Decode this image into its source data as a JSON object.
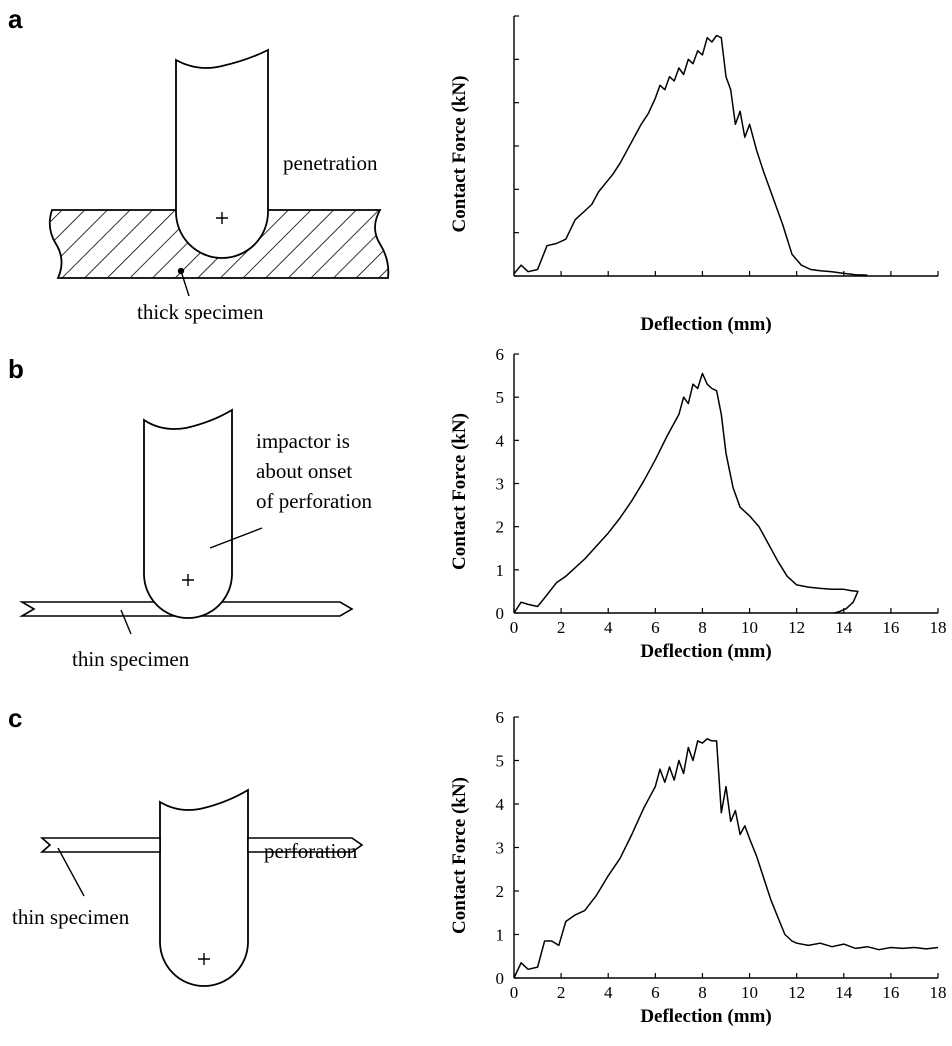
{
  "panels": [
    {
      "letter": "a",
      "annotations": [
        "penetration",
        "thick specimen"
      ]
    },
    {
      "letter": "b",
      "annotations": [
        "impactor is",
        "about onset",
        "of perforation",
        "thin specimen"
      ]
    },
    {
      "letter": "c",
      "annotations": [
        "perforation",
        "thin specimen"
      ]
    }
  ],
  "colors": {
    "line": "#000000",
    "background": "#ffffff"
  },
  "chart_data": [
    {
      "type": "line",
      "xlabel": "Deflection (mm)",
      "ylabel": "Contact Force (kN)",
      "xlim": [
        0,
        18
      ],
      "ylim": [
        0,
        6
      ],
      "show_x_tick_labels": false,
      "show_y_tick_labels": false,
      "x_ticks": [
        0,
        2,
        4,
        6,
        8,
        10,
        12,
        14,
        16,
        18
      ],
      "y_ticks": [
        0,
        1,
        2,
        3,
        4,
        5,
        6
      ],
      "grid": false,
      "series": [
        {
          "x": [
            0.0,
            0.3,
            0.6,
            1.0,
            1.4,
            1.8,
            2.2,
            2.6,
            3.0,
            3.3,
            3.6,
            3.9,
            4.2,
            4.5,
            4.8,
            5.1,
            5.4,
            5.7,
            6.0,
            6.2,
            6.4,
            6.6,
            6.8,
            7.0,
            7.2,
            7.4,
            7.6,
            7.8,
            8.0,
            8.2,
            8.4,
            8.6,
            8.8,
            9.0,
            9.2,
            9.4,
            9.6,
            9.8,
            10.0,
            10.3,
            10.6,
            11.0,
            11.4,
            11.8,
            12.2,
            12.6,
            13.0,
            13.5,
            14.0,
            14.5,
            15.0
          ],
          "y": [
            0.05,
            0.25,
            0.1,
            0.15,
            0.7,
            0.75,
            0.85,
            1.3,
            1.5,
            1.65,
            1.95,
            2.15,
            2.35,
            2.6,
            2.9,
            3.2,
            3.5,
            3.75,
            4.1,
            4.4,
            4.3,
            4.6,
            4.5,
            4.8,
            4.65,
            5.0,
            4.9,
            5.2,
            5.1,
            5.5,
            5.4,
            5.55,
            5.5,
            4.6,
            4.3,
            3.5,
            3.8,
            3.2,
            3.5,
            2.9,
            2.4,
            1.8,
            1.2,
            0.5,
            0.25,
            0.15,
            0.12,
            0.1,
            0.06,
            0.03,
            0.02
          ]
        }
      ]
    },
    {
      "type": "line",
      "xlabel": "Deflection (mm)",
      "ylabel": "Contact Force (kN)",
      "xlim": [
        0,
        18
      ],
      "ylim": [
        0,
        6
      ],
      "show_x_tick_labels": true,
      "show_y_tick_labels": true,
      "x_ticks": [
        0,
        2,
        4,
        6,
        8,
        10,
        12,
        14,
        16,
        18
      ],
      "y_ticks": [
        0,
        1,
        2,
        3,
        4,
        5,
        6
      ],
      "grid": false,
      "series": [
        {
          "x": [
            0.0,
            0.3,
            0.6,
            1.0,
            1.3,
            1.8,
            2.2,
            2.6,
            3.0,
            3.5,
            4.0,
            4.5,
            5.0,
            5.5,
            6.0,
            6.5,
            7.0,
            7.2,
            7.4,
            7.6,
            7.8,
            8.0,
            8.2,
            8.4,
            8.6,
            8.8,
            9.0,
            9.3,
            9.6,
            10.0,
            10.4,
            10.8,
            11.2,
            11.6,
            12.0,
            12.5,
            13.0,
            13.5,
            14.0,
            14.3,
            14.6,
            14.4,
            14.1,
            13.8,
            13.6
          ],
          "y": [
            0.0,
            0.25,
            0.2,
            0.15,
            0.35,
            0.7,
            0.85,
            1.05,
            1.25,
            1.55,
            1.85,
            2.2,
            2.6,
            3.05,
            3.55,
            4.1,
            4.6,
            5.0,
            4.85,
            5.3,
            5.2,
            5.55,
            5.3,
            5.2,
            5.15,
            4.6,
            3.7,
            2.9,
            2.45,
            2.25,
            2.0,
            1.6,
            1.2,
            0.85,
            0.65,
            0.6,
            0.57,
            0.55,
            0.55,
            0.52,
            0.5,
            0.25,
            0.1,
            0.03,
            0.0
          ]
        }
      ]
    },
    {
      "type": "line",
      "xlabel": "Deflection (mm)",
      "ylabel": "Contact Force (kN)",
      "xlim": [
        0,
        18
      ],
      "ylim": [
        0,
        6
      ],
      "show_x_tick_labels": true,
      "show_y_tick_labels": true,
      "x_ticks": [
        0,
        2,
        4,
        6,
        8,
        10,
        12,
        14,
        16,
        18
      ],
      "y_ticks": [
        0,
        1,
        2,
        3,
        4,
        5,
        6
      ],
      "grid": false,
      "series": [
        {
          "x": [
            0.0,
            0.3,
            0.6,
            1.0,
            1.3,
            1.6,
            1.9,
            2.2,
            2.6,
            3.0,
            3.5,
            4.0,
            4.5,
            5.0,
            5.5,
            5.8,
            6.0,
            6.2,
            6.4,
            6.6,
            6.8,
            7.0,
            7.2,
            7.4,
            7.6,
            7.8,
            8.0,
            8.2,
            8.4,
            8.6,
            8.8,
            9.0,
            9.2,
            9.4,
            9.6,
            9.8,
            10.0,
            10.3,
            10.6,
            10.9,
            11.2,
            11.5,
            11.8,
            12.0,
            12.5,
            13.0,
            13.5,
            14.0,
            14.5,
            15.0,
            15.5,
            16.0,
            16.5,
            17.0,
            17.5,
            18.0
          ],
          "y": [
            0.0,
            0.35,
            0.2,
            0.25,
            0.85,
            0.85,
            0.75,
            1.3,
            1.45,
            1.55,
            1.9,
            2.35,
            2.75,
            3.3,
            3.9,
            4.2,
            4.4,
            4.8,
            4.5,
            4.85,
            4.55,
            5.0,
            4.7,
            5.3,
            5.0,
            5.45,
            5.4,
            5.5,
            5.45,
            5.45,
            3.8,
            4.4,
            3.6,
            3.85,
            3.3,
            3.5,
            3.2,
            2.8,
            2.3,
            1.8,
            1.4,
            1.0,
            0.85,
            0.8,
            0.75,
            0.8,
            0.72,
            0.78,
            0.68,
            0.72,
            0.65,
            0.7,
            0.68,
            0.7,
            0.67,
            0.7
          ]
        }
      ]
    }
  ]
}
